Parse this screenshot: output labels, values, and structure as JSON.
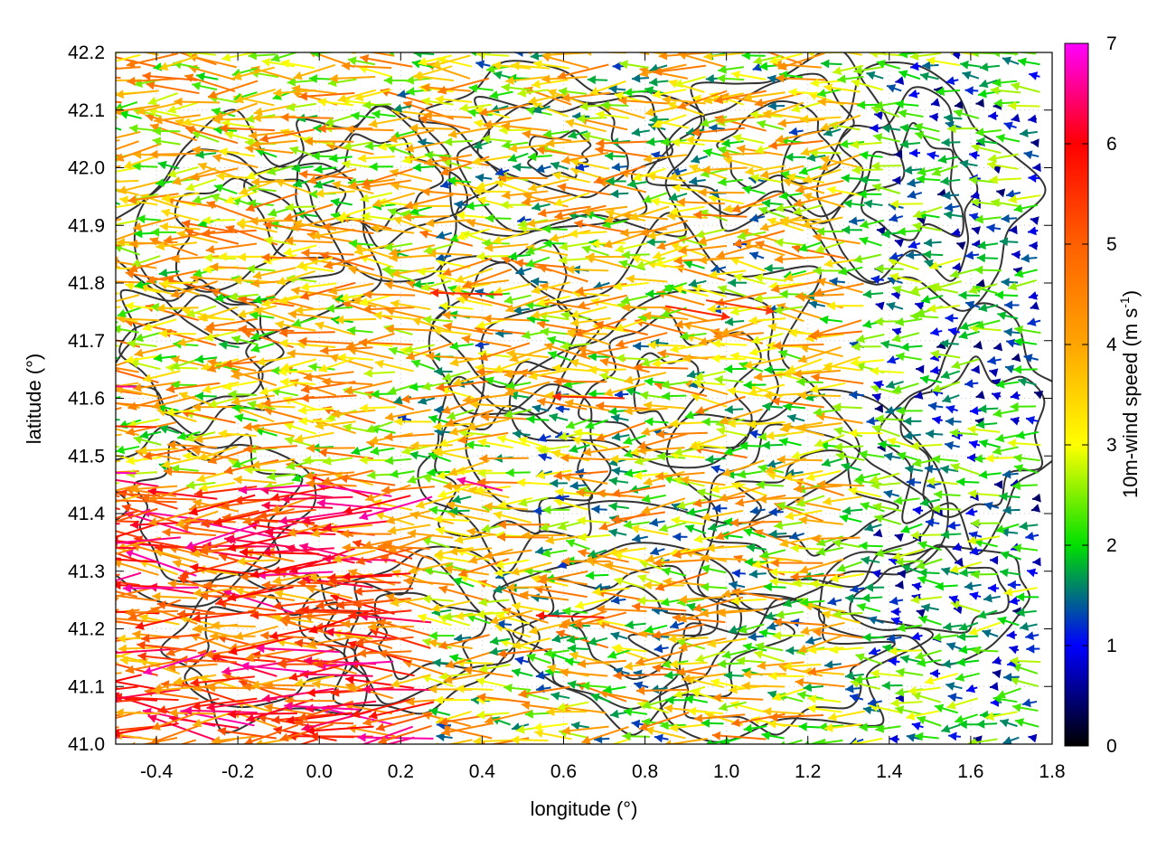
{
  "chart_data": {
    "type": "vector-field",
    "xlabel": "longitude (°)",
    "ylabel": "latitude (°)",
    "colorbar_label": "10m-wind speed (m s⁻¹)",
    "colorbar_label_main": "10m-wind speed (m s",
    "colorbar_label_sup": "-1",
    "colorbar_label_close": ")",
    "xlim": [
      -0.5,
      1.8
    ],
    "ylim": [
      41.0,
      42.2
    ],
    "xticks": [
      -0.4,
      -0.2,
      0.0,
      0.2,
      0.4,
      0.6,
      0.8,
      1.0,
      1.2,
      1.4,
      1.6,
      1.8
    ],
    "xtick_labels": [
      "-0.4",
      "-0.2",
      "0.0",
      "0.2",
      "0.4",
      "0.6",
      "0.8",
      "1.0",
      "1.2",
      "1.4",
      "1.6",
      "1.8"
    ],
    "yticks": [
      41.0,
      41.1,
      41.2,
      41.3,
      41.4,
      41.5,
      41.6,
      41.7,
      41.8,
      41.9,
      42.0,
      42.1,
      42.2
    ],
    "ytick_labels": [
      "41.0",
      "41.1",
      "41.2",
      "41.3",
      "41.4",
      "41.5",
      "41.6",
      "41.7",
      "41.8",
      "41.9",
      "42.0",
      "42.1",
      "42.2"
    ],
    "colorbar_range": [
      0,
      7
    ],
    "colorbar_ticks": [
      0,
      1,
      2,
      3,
      4,
      5,
      6,
      7
    ],
    "colorbar_tick_labels": [
      "0",
      "1",
      "2",
      "3",
      "4",
      "5",
      "6",
      "7"
    ],
    "colormap": [
      {
        "value": 0,
        "color": "#000000"
      },
      {
        "value": 1,
        "color": "#0000ff"
      },
      {
        "value": 2,
        "color": "#00e000"
      },
      {
        "value": 3,
        "color": "#ffff00"
      },
      {
        "value": 4,
        "color": "#ffa500"
      },
      {
        "value": 5,
        "color": "#ff6000"
      },
      {
        "value": 6,
        "color": "#ff0000"
      },
      {
        "value": 7,
        "color": "#ff00ff"
      }
    ],
    "grid": true,
    "vectors": [
      {
        "x": -0.45,
        "y": 41.62,
        "u": -4.6,
        "v": 0.1,
        "speed": 6.6
      },
      {
        "x": -0.45,
        "y": 41.47,
        "u": -4.8,
        "v": 0.1,
        "speed": 6.8
      },
      {
        "x": -0.45,
        "y": 41.34,
        "u": -4.2,
        "v": 0.1,
        "speed": 6.2
      },
      {
        "x": -0.4,
        "y": 41.55,
        "u": -4.4,
        "v": 0.1,
        "speed": 5.6
      },
      {
        "x": -0.35,
        "y": 41.42,
        "u": -4.0,
        "v": 0.1,
        "speed": 5.0
      },
      {
        "x": 0.0,
        "y": 41.33,
        "u": -4.2,
        "v": 0.1,
        "speed": 6.0
      },
      {
        "x": 0.05,
        "y": 41.16,
        "u": -4.4,
        "v": 0.2,
        "speed": 6.6
      },
      {
        "x": 0.1,
        "y": 41.06,
        "u": -4.0,
        "v": 0.2,
        "speed": 6.6
      },
      {
        "x": 0.15,
        "y": 41.23,
        "u": -4.2,
        "v": 0.1,
        "speed": 5.6
      },
      {
        "x": 0.2,
        "y": 41.28,
        "u": -3.8,
        "v": 0.1,
        "speed": 5.4
      },
      {
        "x": 0.45,
        "y": 41.78,
        "u": -3.8,
        "v": 0.1,
        "speed": 5.6
      },
      {
        "x": 0.45,
        "y": 41.44,
        "u": -2.4,
        "v": 0.6,
        "speed": 6.6
      },
      {
        "x": 0.85,
        "y": 41.76,
        "u": 3.4,
        "v": -0.6,
        "speed": 5.6
      },
      {
        "x": 0.95,
        "y": 41.77,
        "u": 3.6,
        "v": -0.6,
        "speed": 5.4
      },
      {
        "x": 0.75,
        "y": 41.6,
        "u": -3.8,
        "v": 0.1,
        "speed": 5.6
      },
      {
        "x": 0.7,
        "y": 41.22,
        "u": -3.6,
        "v": 0.1,
        "speed": 5.8
      }
    ],
    "contour_description_free": false
  }
}
